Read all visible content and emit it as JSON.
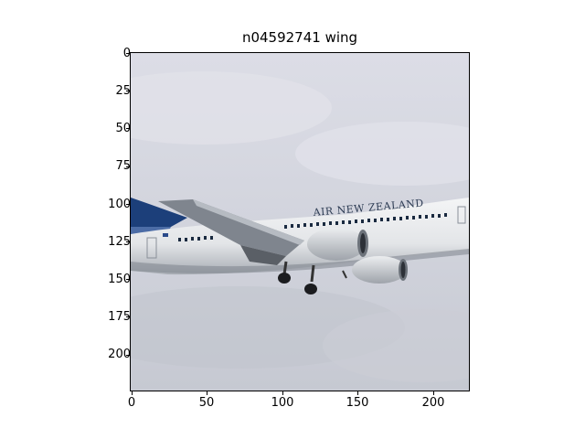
{
  "figure": {
    "title": "n04592741 wing",
    "image_subject": "airplane",
    "livery_text": "AIR NEW ZEALAND"
  },
  "axes": {
    "x_ticks": [
      "0",
      "50",
      "100",
      "150",
      "200"
    ],
    "y_ticks": [
      "0",
      "25",
      "50",
      "75",
      "100",
      "125",
      "150",
      "175",
      "200"
    ],
    "x_range": [
      0,
      224
    ],
    "y_range": [
      0,
      224
    ]
  },
  "colors": {
    "sky": "#d4d6de",
    "fuselage": "#eef0f2",
    "tail": "#1c3f7a",
    "engine": "#d7d9dc"
  }
}
